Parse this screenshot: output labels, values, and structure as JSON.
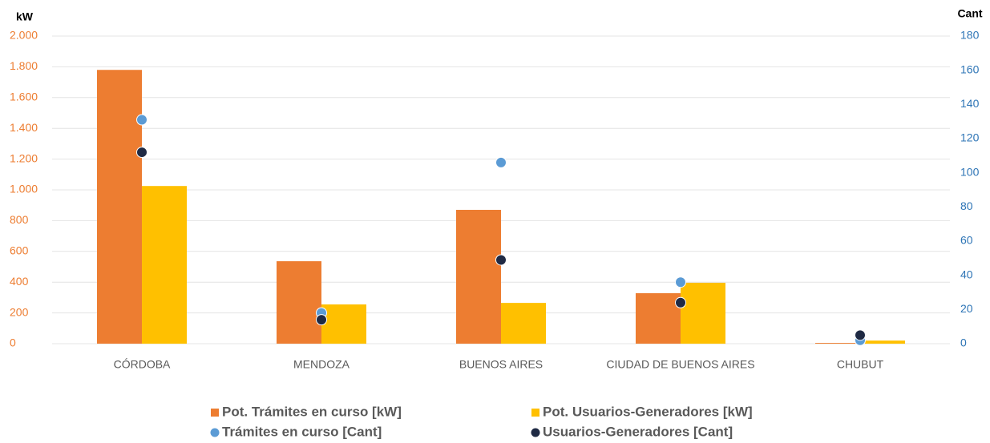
{
  "chart_data": {
    "type": "bar",
    "y_label": "kW",
    "y2_label": "Cant",
    "categories": [
      "CÓRDOBA",
      "MENDOZA",
      "BUENOS AIRES",
      "CIUDAD DE BUENOS AIRES",
      "CHUBUT"
    ],
    "series": [
      {
        "name": "Pot. Trámites en curso [kW]",
        "type": "bar",
        "color": "#ed7d31",
        "values": [
          1780,
          536,
          870,
          328,
          5
        ]
      },
      {
        "name": "Pot. Usuarios-Generadores [kW]",
        "type": "bar",
        "color": "#ffc000",
        "values": [
          1025,
          255,
          265,
          396,
          20
        ]
      },
      {
        "name": "Trámites en curso [Cant]",
        "type": "scatter",
        "axis": "y2",
        "color": "#5b9bd5",
        "values": [
          131,
          18,
          106,
          36,
          2
        ]
      },
      {
        "name": "Usuarios-Generadores [Cant]",
        "type": "scatter",
        "axis": "y2",
        "color": "#1f2a44",
        "values": [
          112,
          14,
          49,
          24,
          5
        ]
      }
    ],
    "ylim": [
      0,
      2000
    ],
    "yticks": [
      0,
      200,
      400,
      600,
      800,
      {
        "value": 1000,
        "label": "1.000"
      },
      {
        "value": 1200,
        "label": "1.200"
      },
      {
        "value": 1400,
        "label": "1.400"
      },
      {
        "value": 1600,
        "label": "1.600"
      },
      {
        "value": 1800,
        "label": "1.800"
      },
      {
        "value": 2000,
        "label": "2.000"
      }
    ],
    "y2lim": [
      0,
      180
    ],
    "y2ticks": [
      0,
      20,
      40,
      60,
      80,
      100,
      120,
      140,
      160,
      180
    ],
    "grid": true,
    "legend": "bottom"
  }
}
